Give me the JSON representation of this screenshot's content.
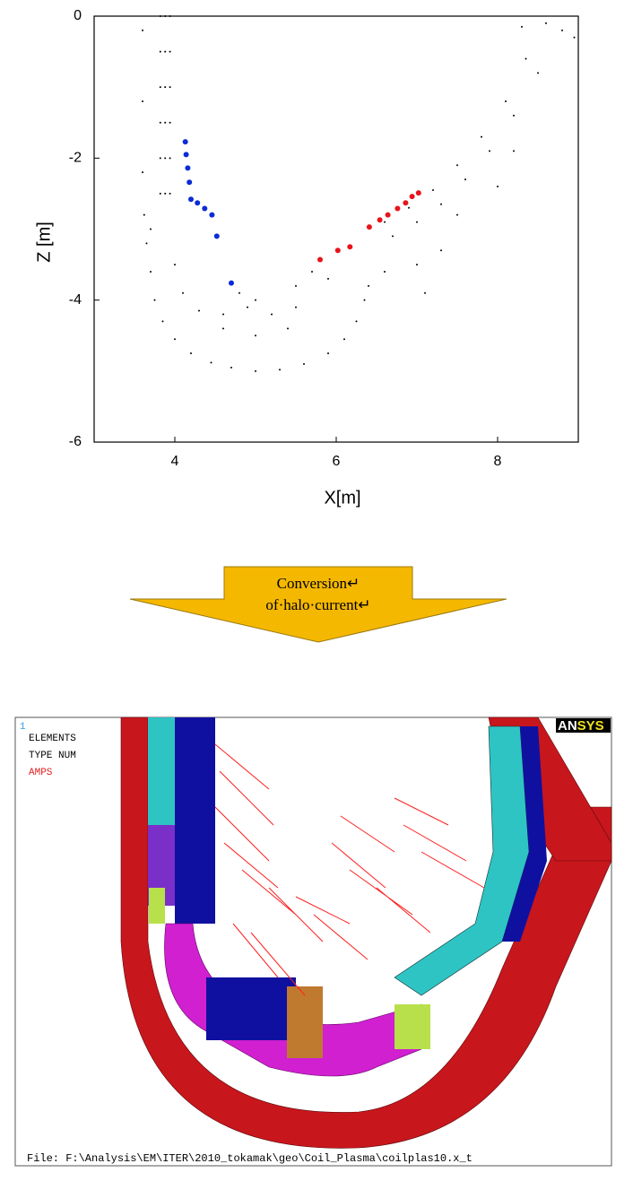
{
  "chart_data": {
    "type": "scatter",
    "x_label": "X[m]",
    "y_label": "Z [m]",
    "xlim": [
      3,
      9
    ],
    "ylim": [
      -6,
      0
    ],
    "xticks": [
      4,
      6,
      8
    ],
    "yticks": [
      0,
      -2,
      -4,
      -6
    ],
    "grid": false,
    "series": [
      {
        "color": "#000000",
        "x": [
          3.82,
          3.82,
          3.82,
          3.82,
          3.82,
          3.82,
          3.88,
          3.88,
          3.88,
          3.88,
          3.88,
          3.88,
          3.94,
          3.94,
          3.94,
          3.94,
          3.94,
          3.94,
          3.6,
          3.6,
          3.6,
          3.62,
          3.65,
          3.7,
          3.7,
          3.75,
          3.85,
          4.0,
          4.2,
          4.45,
          4.7,
          5.0,
          5.3,
          5.6,
          5.9,
          6.1,
          6.25,
          6.35,
          4.0,
          4.1,
          4.3,
          4.6,
          5.0,
          5.4,
          5.5,
          5.5,
          5.7,
          6.6,
          6.9,
          7.2,
          7.5,
          7.8,
          8.1,
          8.35,
          6.7,
          7.0,
          7.3,
          7.6,
          7.9,
          8.2,
          8.5,
          8.6,
          8.8,
          8.95,
          8.3,
          7.3,
          7.0,
          6.6,
          7.1,
          6.4,
          5.9,
          7.5,
          8.0,
          8.2,
          4.8,
          5.0,
          5.2,
          4.9,
          4.6
        ],
        "values": [
          0,
          -0.5,
          -1,
          -1.5,
          -2,
          -2.5,
          0,
          -0.5,
          -1,
          -1.5,
          -2,
          -2.5,
          0,
          -0.5,
          -1,
          -1.5,
          -2,
          -2.5,
          -0.2,
          -1.2,
          -2.2,
          -2.8,
          -3.2,
          -3.6,
          -3.0,
          -4.0,
          -4.3,
          -4.55,
          -4.75,
          -4.88,
          -4.95,
          -5.0,
          -4.98,
          -4.9,
          -4.75,
          -4.55,
          -4.3,
          -4.0,
          -3.5,
          -3.9,
          -4.15,
          -4.4,
          -4.5,
          -4.4,
          -4.1,
          -3.8,
          -3.6,
          -2.9,
          -2.7,
          -2.45,
          -2.1,
          -1.7,
          -1.2,
          -0.6,
          -3.1,
          -2.9,
          -2.65,
          -2.3,
          -1.9,
          -1.4,
          -0.8,
          -0.1,
          -0.2,
          -0.3,
          -0.15,
          -3.3,
          -3.5,
          -3.6,
          -3.9,
          -3.8,
          -3.7,
          -2.8,
          -2.4,
          -1.9,
          -3.9,
          -4.0,
          -4.2,
          -4.1,
          -4.2
        ]
      },
      {
        "color": "#0a2bd6",
        "x": [
          4.13,
          4.14,
          4.16,
          4.18,
          4.2,
          4.28,
          4.37,
          4.46,
          4.52,
          4.7
        ],
        "values": [
          -1.77,
          -1.95,
          -2.14,
          -2.34,
          -2.58,
          -2.63,
          -2.71,
          -2.8,
          -3.1,
          -3.76
        ]
      },
      {
        "color": "#e8141c",
        "x": [
          5.8,
          6.02,
          6.17,
          6.41,
          6.54,
          6.64,
          6.76,
          6.86,
          6.94,
          7.02
        ],
        "values": [
          -3.43,
          -3.3,
          -3.25,
          -2.97,
          -2.87,
          -2.8,
          -2.71,
          -2.63,
          -2.54,
          -2.49
        ]
      }
    ]
  },
  "arrow": {
    "lines": [
      "Conversion↵",
      "of·halo·current↵"
    ]
  },
  "render": {
    "number": "1",
    "legend": [
      "ELEMENTS",
      "TYPE NUM",
      "AMPS"
    ],
    "logo_a": "AN",
    "logo_b": "SYS",
    "file": "File: F:\\Analysis\\EM\\ITER\\2010_tokamak\\geo\\Coil_Plasma\\coilplas10.x_t"
  }
}
